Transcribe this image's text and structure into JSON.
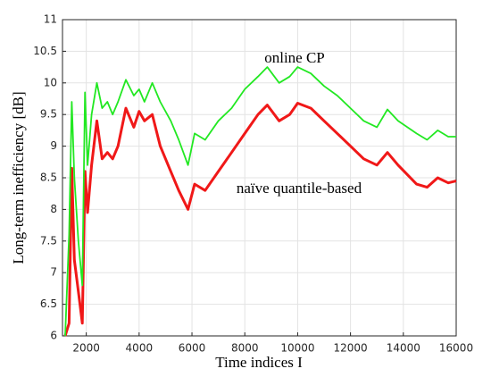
{
  "chart_data": {
    "type": "line",
    "x_label": "Time indices I",
    "y_label": "Long-term inefficiency [dB]",
    "x": [
      1200,
      1350,
      1450,
      1550,
      1700,
      1850,
      1950,
      2050,
      2200,
      2400,
      2600,
      2800,
      3000,
      3200,
      3500,
      3800,
      4000,
      4200,
      4500,
      4800,
      5200,
      5500,
      5850,
      6100,
      6500,
      7000,
      7500,
      8000,
      8500,
      8850,
      9300,
      9700,
      10000,
      10500,
      11000,
      11500,
      12000,
      12500,
      13000,
      13400,
      13800,
      14500,
      14900,
      15300,
      15700,
      16000
    ],
    "series": [
      {
        "name": "online CP",
        "color": "#22e822",
        "values": [
          6,
          7.6,
          9.7,
          8.5,
          7.5,
          6.8,
          9.85,
          8.7,
          9.5,
          10.0,
          9.6,
          9.7,
          9.5,
          9.7,
          10.05,
          9.8,
          9.9,
          9.7,
          10.0,
          9.7,
          9.4,
          9.1,
          8.7,
          9.2,
          9.1,
          9.4,
          9.6,
          9.9,
          10.1,
          10.25,
          10.0,
          10.1,
          10.25,
          10.15,
          9.95,
          9.8,
          9.6,
          9.4,
          9.3,
          9.58,
          9.4,
          9.2,
          9.1,
          9.25,
          9.15,
          9.15
        ]
      },
      {
        "name": "naïve quantile-based",
        "color": "#f01818",
        "values": [
          6,
          6.2,
          8.65,
          7.2,
          6.7,
          6.2,
          8.6,
          7.95,
          8.7,
          9.4,
          8.8,
          8.9,
          8.8,
          9.0,
          9.6,
          9.3,
          9.55,
          9.4,
          9.5,
          9.0,
          8.6,
          8.3,
          8.0,
          8.4,
          8.3,
          8.6,
          8.9,
          9.2,
          9.5,
          9.65,
          9.4,
          9.5,
          9.68,
          9.6,
          9.4,
          9.2,
          9.0,
          8.8,
          8.7,
          8.9,
          8.7,
          8.4,
          8.35,
          8.5,
          8.42,
          8.45
        ]
      }
    ],
    "xlim": [
      1100,
      16000
    ],
    "ylim": [
      6,
      11
    ],
    "xticks": [
      2000,
      4000,
      6000,
      8000,
      10000,
      12000,
      14000,
      16000
    ],
    "yticks": [
      6,
      6.5,
      7,
      7.5,
      8,
      8.5,
      9,
      9.5,
      10,
      10.5,
      11
    ],
    "grid": true
  }
}
